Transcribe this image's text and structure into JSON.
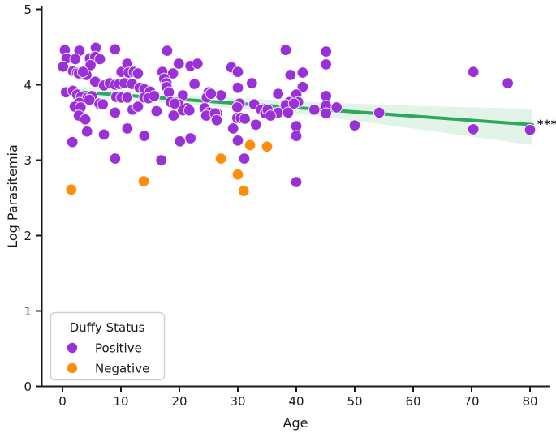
{
  "chart_data": {
    "type": "scatter",
    "title": "",
    "xlabel": "Age",
    "ylabel": "Log Parasitemia",
    "xlim": [
      -3.75,
      83.2
    ],
    "ylim": [
      0,
      5
    ],
    "x_ticks": [
      0,
      10,
      20,
      30,
      40,
      50,
      60,
      70,
      80
    ],
    "y_ticks": [
      0,
      1,
      2,
      3,
      4,
      5
    ],
    "grid": false,
    "annotation": {
      "text": "***",
      "x": 81.3,
      "y": 3.47
    },
    "legend": {
      "title": "Duffy Status",
      "position": "lower left",
      "items": [
        {
          "label": "Positive",
          "color": "#9a31d8"
        },
        {
          "label": "Negative",
          "color": "#ff8c0a"
        }
      ]
    },
    "series": [
      {
        "name": "Positive",
        "color": "#9a31d8",
        "points": [
          [
            0.4,
            4.46
          ],
          [
            2.9,
            4.45
          ],
          [
            5.7,
            4.49
          ],
          [
            9.0,
            4.47
          ],
          [
            0.7,
            4.35
          ],
          [
            2.2,
            4.34
          ],
          [
            4.7,
            4.35
          ],
          [
            5.6,
            4.37
          ],
          [
            6.4,
            4.34
          ],
          [
            0.1,
            4.24
          ],
          [
            1.8,
            4.18
          ],
          [
            2.5,
            4.16
          ],
          [
            3.2,
            4.15
          ],
          [
            4.1,
            4.13
          ],
          [
            4.8,
            4.26
          ],
          [
            2.8,
            4.15
          ],
          [
            3.5,
            4.17
          ],
          [
            10.1,
            4.17
          ],
          [
            11.1,
            4.28
          ],
          [
            11.3,
            4.16
          ],
          [
            12.2,
            4.17
          ],
          [
            12.9,
            4.15
          ],
          [
            17.9,
            4.45
          ],
          [
            19.9,
            4.28
          ],
          [
            21.9,
            4.25
          ],
          [
            23.1,
            4.28
          ],
          [
            17.1,
            4.17
          ],
          [
            18.9,
            4.15
          ],
          [
            28.9,
            4.23
          ],
          [
            30.0,
            4.17
          ],
          [
            38.2,
            4.46
          ],
          [
            45.1,
            4.44
          ],
          [
            45.1,
            4.27
          ],
          [
            39.0,
            4.13
          ],
          [
            41.1,
            4.16
          ],
          [
            70.3,
            4.17
          ],
          [
            76.2,
            4.02
          ],
          [
            5.6,
            4.04
          ],
          [
            7.1,
            3.99
          ],
          [
            8.1,
            4.02
          ],
          [
            9.0,
            4.0
          ],
          [
            9.7,
            4.01
          ],
          [
            10.6,
            4.02
          ],
          [
            11.9,
            4.01
          ],
          [
            13.2,
            3.96
          ],
          [
            14.0,
            3.94
          ],
          [
            15.0,
            3.91
          ],
          [
            17.4,
            4.08
          ],
          [
            17.8,
            4.02
          ],
          [
            22.6,
            4.01
          ],
          [
            30.0,
            3.96
          ],
          [
            32.4,
            4.02
          ],
          [
            41.1,
            3.97
          ],
          [
            0.6,
            3.9
          ],
          [
            1.8,
            3.92
          ],
          [
            2.5,
            3.87
          ],
          [
            3.2,
            3.84
          ],
          [
            4.3,
            3.83
          ],
          [
            5.0,
            3.85
          ],
          [
            9.2,
            3.84
          ],
          [
            10.1,
            3.83
          ],
          [
            11.1,
            3.83
          ],
          [
            14.0,
            3.83
          ],
          [
            14.7,
            3.82
          ],
          [
            15.7,
            3.85
          ],
          [
            17.8,
            3.97
          ],
          [
            18.2,
            3.9
          ],
          [
            20.6,
            3.86
          ],
          [
            25.0,
            3.9
          ],
          [
            24.7,
            3.83
          ],
          [
            27.1,
            3.86
          ],
          [
            25.4,
            3.88
          ],
          [
            36.9,
            3.88
          ],
          [
            40.0,
            3.87
          ],
          [
            45.1,
            3.85
          ],
          [
            2.9,
            3.76
          ],
          [
            6.3,
            3.75
          ],
          [
            6.9,
            3.74
          ],
          [
            4.6,
            3.8
          ],
          [
            18.5,
            3.77
          ],
          [
            19.9,
            3.74
          ],
          [
            21.3,
            3.69
          ],
          [
            20.6,
            3.66
          ],
          [
            24.3,
            3.69
          ],
          [
            25.1,
            3.63
          ],
          [
            26.4,
            3.62
          ],
          [
            30.3,
            3.75
          ],
          [
            29.9,
            3.7
          ],
          [
            32.8,
            3.74
          ],
          [
            19.2,
            3.75
          ],
          [
            2.1,
            3.71
          ],
          [
            3.1,
            3.7
          ],
          [
            12.0,
            3.67
          ],
          [
            12.9,
            3.71
          ],
          [
            9.0,
            3.63
          ],
          [
            16.1,
            3.65
          ],
          [
            19.0,
            3.59
          ],
          [
            21.7,
            3.66
          ],
          [
            24.6,
            3.59
          ],
          [
            26.1,
            3.62
          ],
          [
            26.4,
            3.53
          ],
          [
            29.9,
            3.56
          ],
          [
            30.5,
            3.56
          ],
          [
            31.2,
            3.55
          ],
          [
            34.0,
            3.67
          ],
          [
            34.7,
            3.62
          ],
          [
            33.1,
            3.47
          ],
          [
            29.2,
            3.42
          ],
          [
            38.8,
            3.77
          ],
          [
            40.3,
            3.77
          ],
          [
            35.1,
            3.67
          ],
          [
            37.9,
            3.67
          ],
          [
            38.2,
            3.73
          ],
          [
            39.6,
            3.75
          ],
          [
            36.9,
            3.63
          ],
          [
            38.6,
            3.63
          ],
          [
            35.6,
            3.59
          ],
          [
            43.1,
            3.67
          ],
          [
            45.1,
            3.72
          ],
          [
            45.1,
            3.62
          ],
          [
            46.9,
            3.7
          ],
          [
            2.8,
            3.59
          ],
          [
            3.9,
            3.54
          ],
          [
            4.2,
            3.38
          ],
          [
            7.1,
            3.34
          ],
          [
            11.1,
            3.42
          ],
          [
            14.0,
            3.32
          ],
          [
            1.7,
            3.24
          ],
          [
            20.1,
            3.25
          ],
          [
            21.9,
            3.29
          ],
          [
            30.0,
            3.26
          ],
          [
            16.9,
            3.0
          ],
          [
            31.1,
            3.02
          ],
          [
            9.0,
            3.02
          ],
          [
            40.0,
            3.45
          ],
          [
            40.0,
            3.32
          ],
          [
            40.0,
            2.71
          ],
          [
            50.0,
            3.46
          ],
          [
            54.2,
            3.63
          ],
          [
            70.3,
            3.41
          ],
          [
            80.0,
            3.4
          ]
        ]
      },
      {
        "name": "Negative",
        "color": "#ff8c0a",
        "points": [
          [
            1.5,
            2.61
          ],
          [
            13.9,
            2.72
          ],
          [
            27.1,
            3.02
          ],
          [
            30.0,
            2.81
          ],
          [
            31.0,
            2.59
          ],
          [
            32.1,
            3.2
          ],
          [
            35.0,
            3.18
          ]
        ]
      }
    ],
    "regression": {
      "color": "#2fa85e",
      "line": [
        [
          -0.1,
          3.92
        ],
        [
          80.4,
          3.47
        ]
      ],
      "ci_upper": [
        [
          -0.1,
          3.99
        ],
        [
          20,
          3.87
        ],
        [
          40,
          3.78
        ],
        [
          60,
          3.72
        ],
        [
          80.4,
          3.68
        ]
      ],
      "ci_lower": [
        [
          -0.1,
          3.84
        ],
        [
          20,
          3.75
        ],
        [
          40,
          3.62
        ],
        [
          60,
          3.42
        ],
        [
          80.4,
          3.2
        ]
      ],
      "ci_fill": "rgba(47,168,94,0.14)"
    }
  },
  "style": {
    "axis_color": "#1a1a1a",
    "background": "#ffffff"
  }
}
